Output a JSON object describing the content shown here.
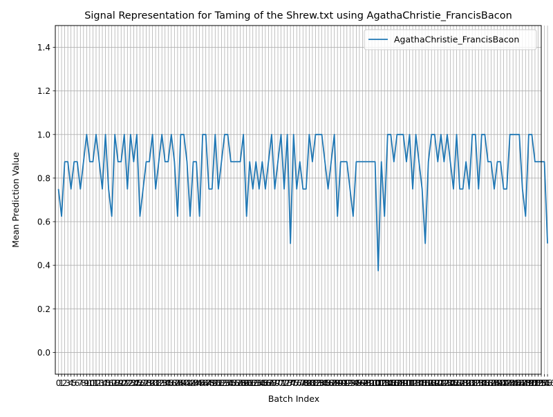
{
  "chart_data": {
    "type": "line",
    "title": "Signal Representation for Taming of the Shrew.txt using AgathaChristie_FrancisBacon",
    "xlabel": "Batch Index",
    "ylabel": "Mean Prediction Value",
    "xlim": [
      -1,
      154
    ],
    "ylim": [
      -0.1,
      1.5
    ],
    "y_ticks": [
      "0.0",
      "0.2",
      "0.4",
      "0.6",
      "0.8",
      "1.0",
      "1.2",
      "1.4"
    ],
    "x_ticks_note": "integer tick at every batch index 0-153, labels overlap",
    "grid": true,
    "legend_position": "upper right",
    "colors": {
      "series": "#1f77b4",
      "grid": "#b0b0b0",
      "axes": "#000000"
    },
    "series": [
      {
        "name": "AgathaChristie_FrancisBacon",
        "values": [
          0.75,
          0.625,
          0.875,
          0.875,
          0.75,
          0.875,
          0.875,
          0.75,
          0.875,
          1.0,
          0.875,
          0.875,
          1.0,
          0.875,
          0.75,
          1.0,
          0.75,
          0.625,
          1.0,
          0.875,
          0.875,
          1.0,
          0.75,
          1.0,
          0.875,
          1.0,
          0.625,
          0.75,
          0.875,
          0.875,
          1.0,
          0.75,
          0.875,
          1.0,
          0.875,
          0.875,
          1.0,
          0.875,
          0.625,
          1.0,
          1.0,
          0.875,
          0.625,
          0.875,
          0.875,
          0.625,
          1.0,
          1.0,
          0.75,
          0.75,
          1.0,
          0.75,
          0.875,
          1.0,
          1.0,
          0.875,
          0.875,
          0.875,
          0.875,
          1.0,
          0.625,
          0.875,
          0.75,
          0.875,
          0.75,
          0.875,
          0.75,
          0.875,
          1.0,
          0.75,
          0.875,
          1.0,
          0.75,
          1.0,
          0.5,
          1.0,
          0.75,
          0.875,
          0.75,
          0.75,
          1.0,
          0.875,
          1.0,
          1.0,
          1.0,
          0.875,
          0.75,
          0.875,
          1.0,
          0.625,
          0.875,
          0.875,
          0.875,
          0.75,
          0.625,
          0.875,
          0.875,
          0.875,
          0.875,
          0.875,
          0.875,
          0.875,
          0.375,
          0.875,
          0.625,
          1.0,
          1.0,
          0.875,
          1.0,
          1.0,
          1.0,
          0.875,
          1.0,
          0.75,
          1.0,
          0.875,
          0.75,
          0.5,
          0.875,
          1.0,
          1.0,
          0.875,
          1.0,
          0.875,
          1.0,
          0.875,
          0.75,
          1.0,
          0.75,
          0.75,
          0.875,
          0.75,
          1.0,
          1.0,
          0.75,
          1.0,
          1.0,
          0.875,
          0.875,
          0.75,
          0.875,
          0.875,
          0.75,
          0.75,
          1.0,
          1.0,
          1.0,
          1.0,
          0.75,
          0.625,
          1.0,
          1.0,
          0.875,
          0.875,
          0.875,
          0.875,
          0.5
        ]
      }
    ]
  }
}
